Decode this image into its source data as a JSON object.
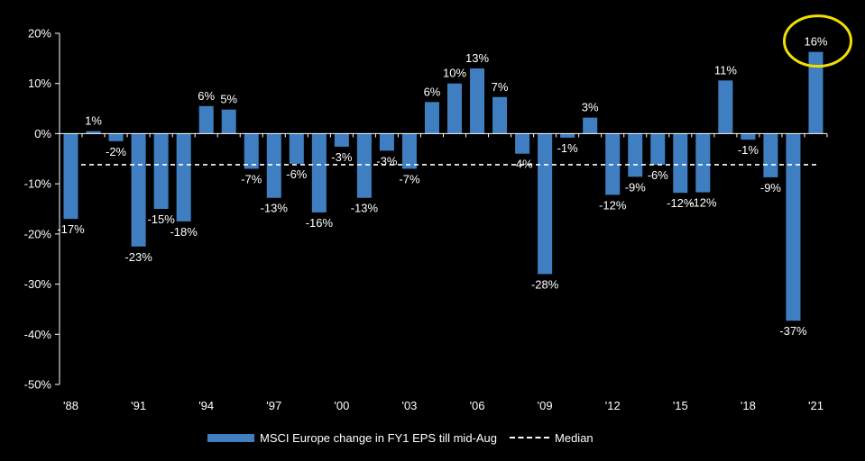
{
  "chart_data": {
    "type": "bar",
    "categories": [
      "'88",
      "'89",
      "'90",
      "'91",
      "'92",
      "'93",
      "'94",
      "'95",
      "'96",
      "'97",
      "'98",
      "'99",
      "'00",
      "'01",
      "'02",
      "'03",
      "'04",
      "'05",
      "'06",
      "'07",
      "'08",
      "'09",
      "'10",
      "'11",
      "'12",
      "'13",
      "'14",
      "'15",
      "'16",
      "'17",
      "'18",
      "'19",
      "'20",
      "'21"
    ],
    "x_tick_labels": [
      "'88",
      "'91",
      "'94",
      "'97",
      "'00",
      "'03",
      "'06",
      "'09",
      "'12",
      "'15",
      "'18",
      "'21"
    ],
    "series": [
      {
        "name": "MSCI Europe change in FY1 EPS till mid-Aug",
        "values": [
          -17,
          0.5,
          -1.5,
          -22.5,
          -15,
          -17.5,
          5.5,
          4.8,
          -7,
          -12.8,
          -6,
          -15.7,
          -2.6,
          -12.8,
          -3.4,
          -7,
          6.3,
          10,
          13,
          7.3,
          -4,
          -28,
          -0.8,
          3.2,
          -12.2,
          -8.6,
          -6.2,
          -11.8,
          -11.7,
          10.6,
          -1.2,
          -8.7,
          -37.3,
          16.3
        ],
        "labels": [
          "-17%",
          "1%",
          "-2%",
          "-23%",
          "-15%",
          "-18%",
          "6%",
          "5%",
          "-7%",
          "-13%",
          "-6%",
          "-16%",
          "-3%",
          "-13%",
          "-3%",
          "-7%",
          "6%",
          "10%",
          "13%",
          "7%",
          "-4%",
          "-28%",
          "-1%",
          "3%",
          "-12%",
          "-9%",
          "-6%",
          "-12%",
          "-12%",
          "11%",
          "-1%",
          "-9%",
          "-37%",
          "16%"
        ],
        "color": "#3f7fc1"
      }
    ],
    "median": {
      "name": "Median",
      "value": -6.2,
      "color": "#ffffff"
    },
    "ylim": [
      -50,
      20
    ],
    "y_ticks": [
      -50,
      -40,
      -30,
      -20,
      -10,
      0,
      10,
      20
    ],
    "y_tick_labels": [
      "-50%",
      "-40%",
      "-30%",
      "-20%",
      "-10%",
      "0%",
      "10%",
      "20%"
    ],
    "highlight": {
      "category": "'21",
      "color": "#f0e000"
    },
    "legend_position": "bottom",
    "grid": false
  }
}
